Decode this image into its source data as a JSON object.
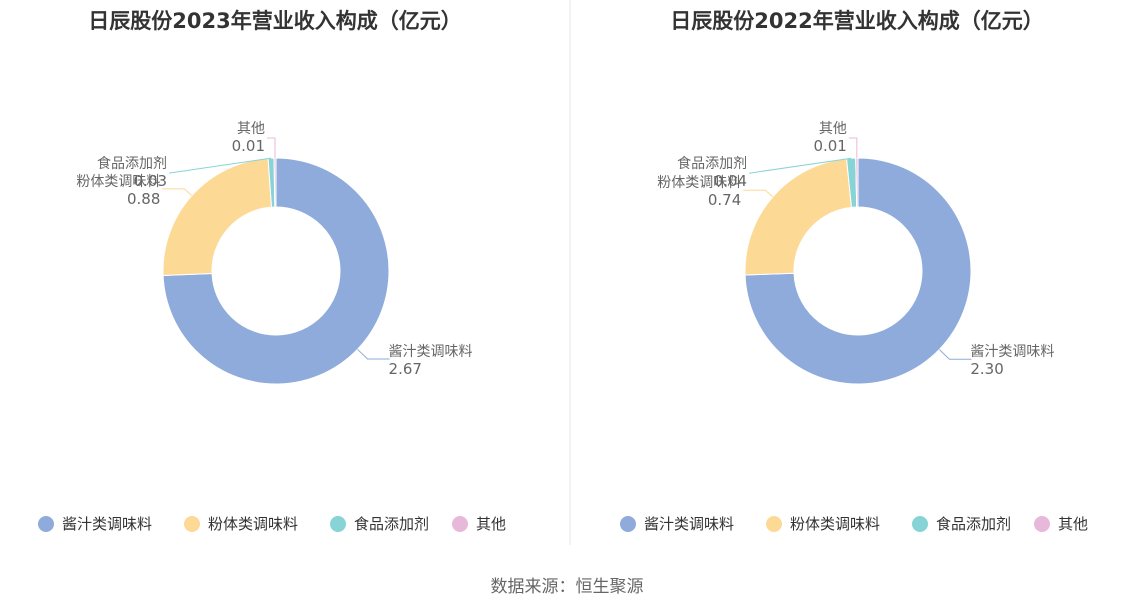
{
  "chart_data": [
    {
      "type": "pie",
      "title": "日辰股份2023年营业收入构成（亿元）",
      "series": [
        {
          "name": "酱汁类调味料",
          "value": 2.67,
          "label": "2.67",
          "color": "#8eabdc"
        },
        {
          "name": "粉体类调味料",
          "value": 0.88,
          "label": "0.88",
          "color": "#fdd996"
        },
        {
          "name": "食品添加剂",
          "value": 0.03,
          "label": "0.03",
          "color": "#86d4d6"
        },
        {
          "name": "其他",
          "value": 0.01,
          "label": "0.01",
          "color": "#e8b8da"
        }
      ]
    },
    {
      "type": "pie",
      "title": "日辰股份2022年营业收入构成（亿元）",
      "series": [
        {
          "name": "酱汁类调味料",
          "value": 2.3,
          "label": "2.30",
          "color": "#8eabdc"
        },
        {
          "name": "粉体类调味料",
          "value": 0.74,
          "label": "0.74",
          "color": "#fdd996"
        },
        {
          "name": "食品添加剂",
          "value": 0.04,
          "label": "0.04",
          "color": "#86d4d6"
        },
        {
          "name": "其他",
          "value": 0.01,
          "label": "0.01",
          "color": "#e8b8da"
        }
      ]
    }
  ],
  "legend": {
    "placement": "bottom",
    "items": [
      {
        "name": "酱汁类调味料",
        "color": "#8eabdc"
      },
      {
        "name": "粉体类调味料",
        "color": "#fdd996"
      },
      {
        "name": "食品添加剂",
        "color": "#86d4d6"
      },
      {
        "name": "其他",
        "color": "#e8b8da"
      }
    ]
  },
  "source": "数据来源：恒生聚源"
}
